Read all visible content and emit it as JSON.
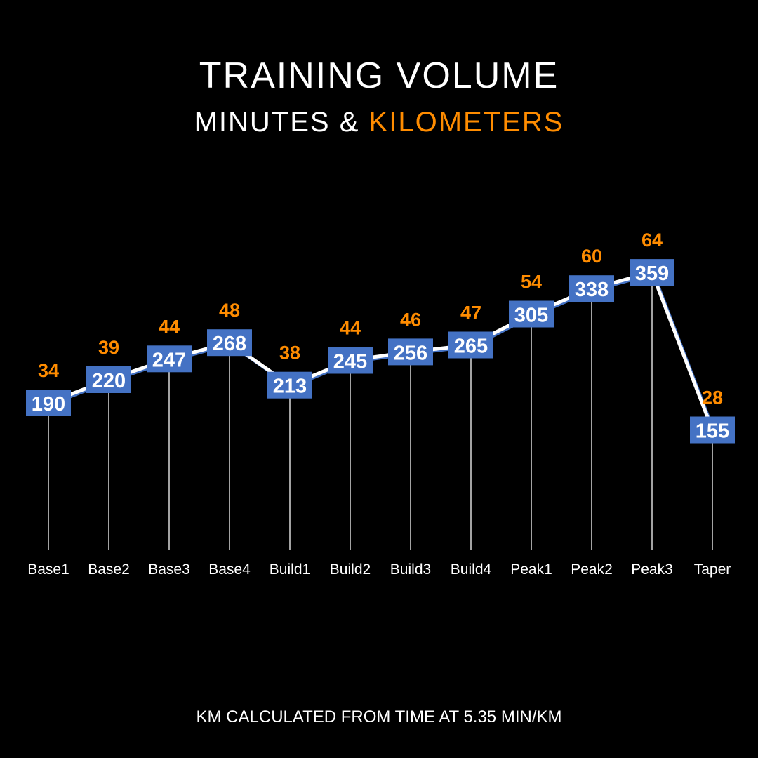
{
  "title": "TRAINING VOLUME",
  "subtitle": {
    "part1": "MINUTES",
    "sep": "&",
    "part2": "KILOMETERS"
  },
  "footnote": "KM CALCULATED FROM TIME AT 5.35 MIN/KM",
  "colors": {
    "background": "#000000",
    "minutes_box": "#4472C4",
    "km_label": "#FF8C00",
    "line": "#FFFFFF"
  },
  "chart_data": {
    "type": "line",
    "categories": [
      "Base1",
      "Base2",
      "Base3",
      "Base4",
      "Build1",
      "Build2",
      "Build3",
      "Build4",
      "Peak1",
      "Peak2",
      "Peak3",
      "Taper"
    ],
    "series": [
      {
        "name": "MINUTES",
        "values": [
          190,
          220,
          247,
          268,
          213,
          245,
          256,
          265,
          305,
          338,
          359,
          155
        ]
      },
      {
        "name": "KILOMETERS",
        "values": [
          34,
          39,
          44,
          48,
          38,
          44,
          46,
          47,
          54,
          60,
          64,
          28
        ]
      }
    ],
    "ylim": [
      0,
      400
    ],
    "grid": false,
    "drop_lines": true
  }
}
